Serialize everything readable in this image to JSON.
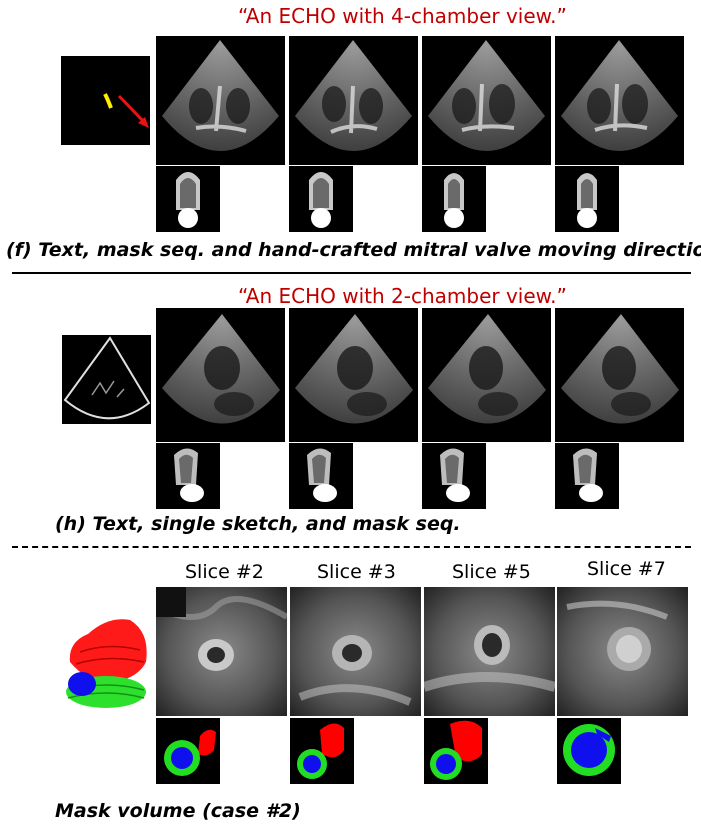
{
  "panel_f": {
    "prompt": "“An ECHO with 4-chamber view.”",
    "caption": "(f) Text, mask seq. and hand-crafted mitral valve moving direction"
  },
  "panel_h": {
    "prompt": "“An ECHO with 2-chamber view.”",
    "caption": "(h) Text, single sketch, and mask seq."
  },
  "panel_mri": {
    "slices": [
      "Slice #2",
      "Slice #3",
      "Slice #5",
      "Slice #7"
    ],
    "caption": "Mask volume (case #2)"
  },
  "colors": {
    "prompt_red": "#c00000",
    "mask_red": "#ff0000",
    "mask_green": "#22dd22",
    "mask_blue": "#1010ee",
    "arrow_red": "#ee1111",
    "stroke_yellow": "#ffee00"
  }
}
